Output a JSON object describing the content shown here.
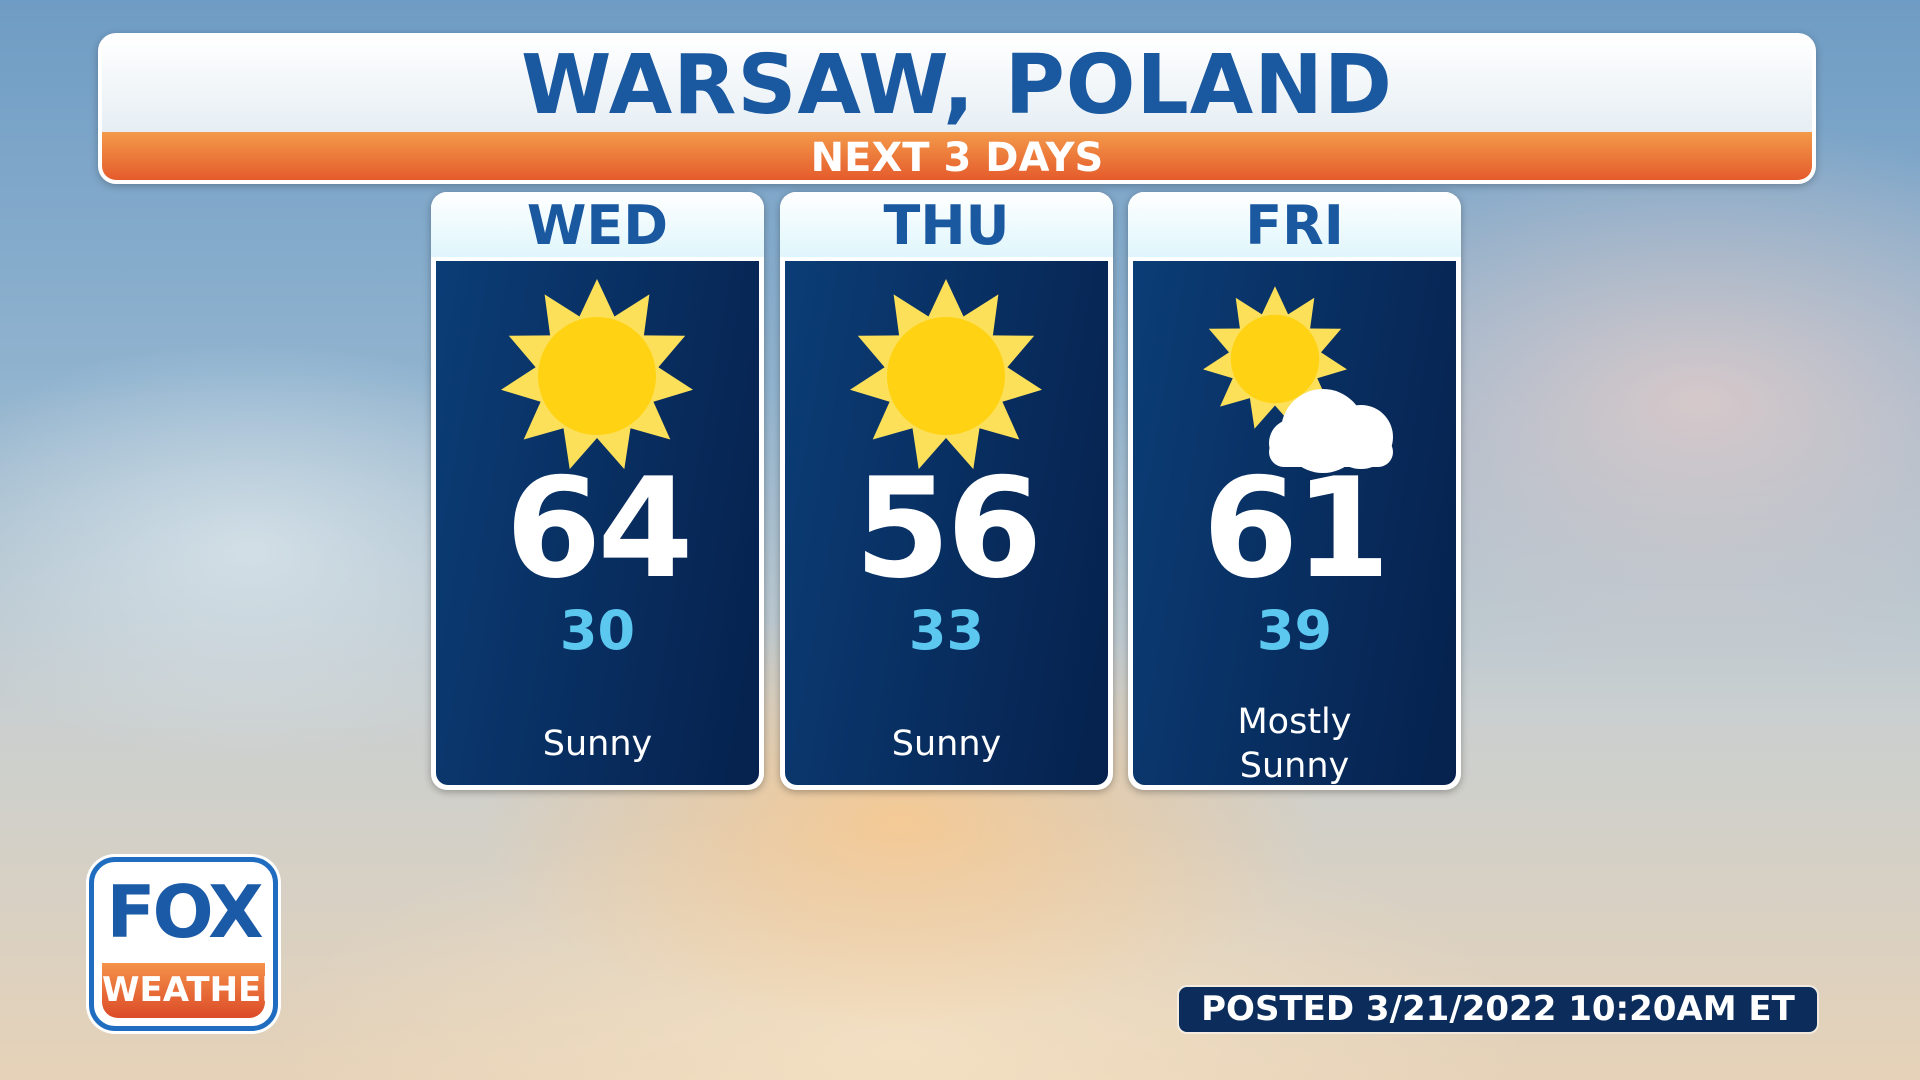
{
  "header": {
    "title": "WARSAW, POLAND",
    "subtitle": "NEXT 3 DAYS"
  },
  "days": [
    {
      "day": "WED",
      "icon": "sun-icon",
      "high": "64",
      "low": "30",
      "condition": "Sunny"
    },
    {
      "day": "THU",
      "icon": "sun-icon",
      "high": "56",
      "low": "33",
      "condition": "Sunny"
    },
    {
      "day": "FRI",
      "icon": "partly-cloudy-icon",
      "high": "61",
      "low": "39",
      "condition": "Mostly Sunny"
    }
  ],
  "logo": {
    "top": "FOX",
    "bottom": "WEATHER"
  },
  "posted": "POSTED 3/21/2022 10:20AM ET",
  "colors": {
    "title_blue": "#1a58a0",
    "orange": "#e4562a",
    "card_navy": "#0b3d76",
    "low_temp": "#5cc8f0",
    "sun": "#ffd214"
  }
}
